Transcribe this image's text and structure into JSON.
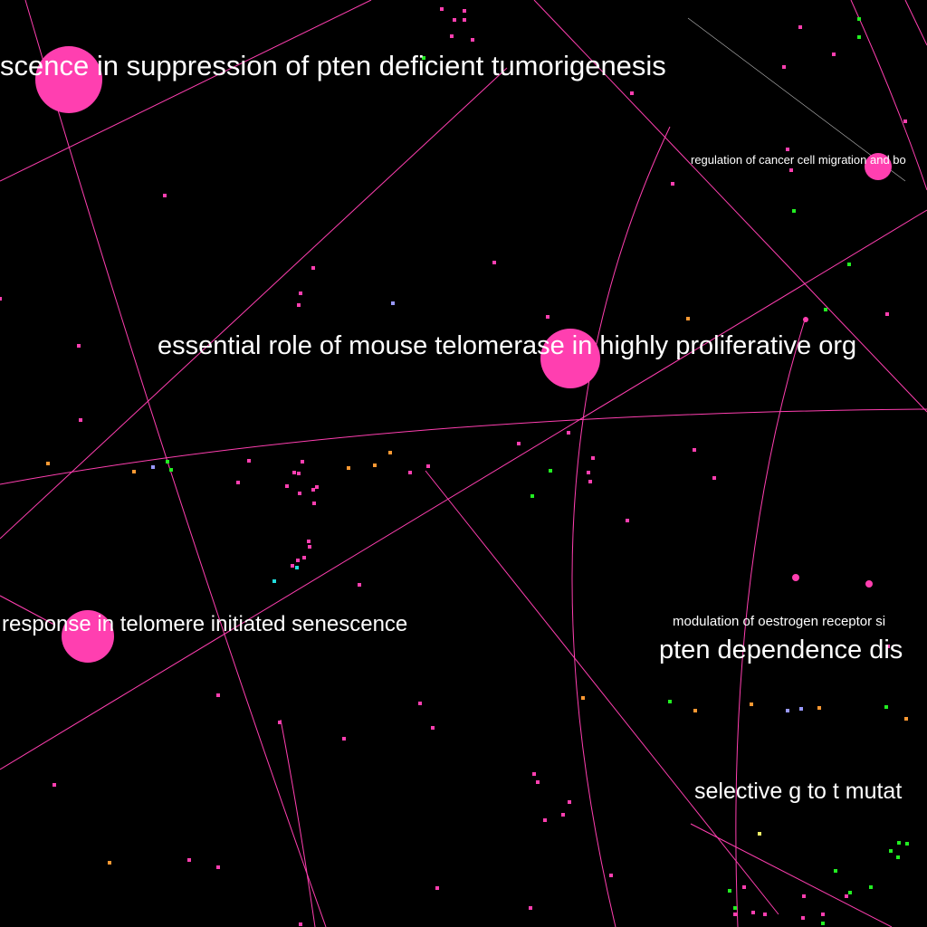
{
  "graph": {
    "background": "#000000",
    "colors": {
      "edge": "#ff3fb0",
      "edge_faint": "#aaaaaa",
      "node": "#ff3fb0",
      "green": "#22ee22",
      "orange": "#ff9933",
      "lavender": "#9999ff",
      "cyan": "#22dddd",
      "yellow": "#eeee66",
      "label": "#ffffff"
    },
    "labels": [
      {
        "id": "pten-tumorigenesis",
        "text": "scence in suppression of pten deficient tumorigenesis"
      },
      {
        "id": "cancer-cell-migration",
        "text": "regulation of cancer cell migration and bo"
      },
      {
        "id": "mouse-telomerase",
        "text": "essential role of mouse telomerase in highly proliferative org"
      },
      {
        "id": "telomere-senescence",
        "text": "response in telomere initiated senescence"
      },
      {
        "id": "oestrogen-receptor",
        "text": "modulation of oestrogen receptor si"
      },
      {
        "id": "pten-dependence",
        "text": "pten dependence dis"
      },
      {
        "id": "g-to-t-mutation",
        "text": "selective g to t mutat"
      }
    ]
  }
}
